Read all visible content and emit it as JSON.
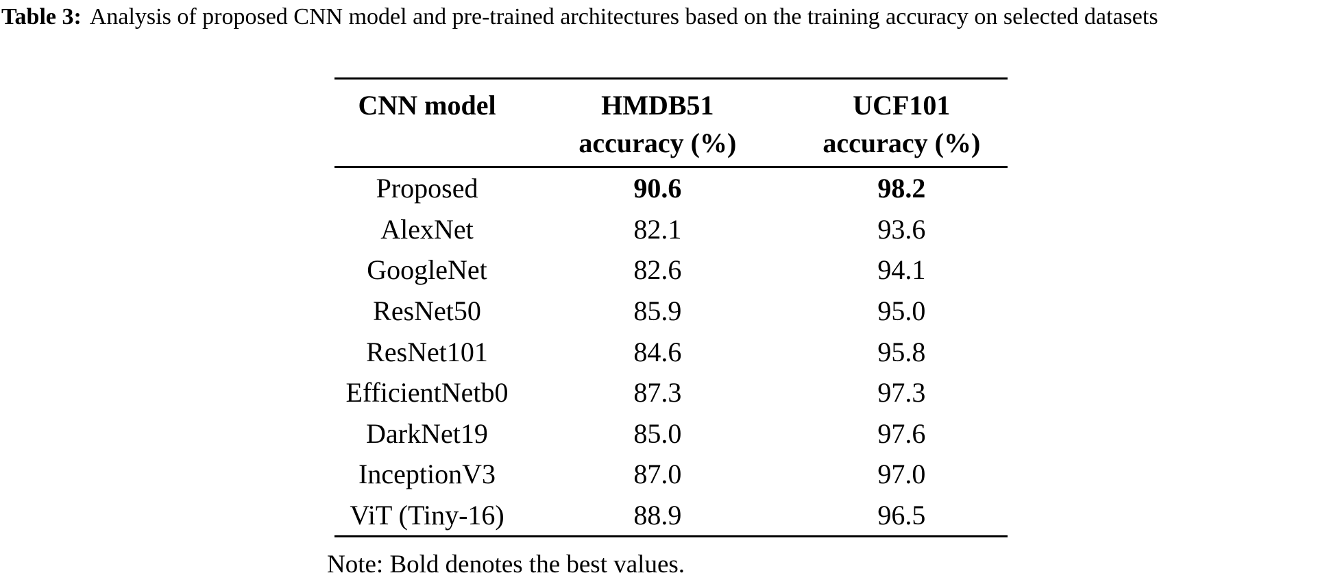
{
  "caption": {
    "label": "Table 3:",
    "text": "Analysis of proposed CNN model and pre-trained architectures based on the training accuracy on selected datasets"
  },
  "table": {
    "header": {
      "model": "CNN model",
      "hmdb_line1": "HMDB51",
      "hmdb_line2": "accuracy (%)",
      "ucf_line1": "UCF101",
      "ucf_line2": "accuracy (%)"
    },
    "rows": [
      {
        "model": "Proposed",
        "hmdb": "90.6",
        "ucf": "98.2",
        "bold_values": true
      },
      {
        "model": "AlexNet",
        "hmdb": "82.1",
        "ucf": "93.6",
        "bold_values": false
      },
      {
        "model": "GoogleNet",
        "hmdb": "82.6",
        "ucf": "94.1",
        "bold_values": false
      },
      {
        "model": "ResNet50",
        "hmdb": "85.9",
        "ucf": "95.0",
        "bold_values": false
      },
      {
        "model": "ResNet101",
        "hmdb": "84.6",
        "ucf": "95.8",
        "bold_values": false
      },
      {
        "model": "EfficientNetb0",
        "hmdb": "87.3",
        "ucf": "97.3",
        "bold_values": false
      },
      {
        "model": "DarkNet19",
        "hmdb": "85.0",
        "ucf": "97.6",
        "bold_values": false
      },
      {
        "model": "InceptionV3",
        "hmdb": "87.0",
        "ucf": "97.0",
        "bold_values": false
      },
      {
        "model": "ViT (Tiny-16)",
        "hmdb": "88.9",
        "ucf": "96.5",
        "bold_values": false
      }
    ]
  },
  "note": "Note: Bold denotes the best values.",
  "colors": {
    "text": "#000000",
    "background": "#ffffff",
    "rule": "#000000"
  }
}
